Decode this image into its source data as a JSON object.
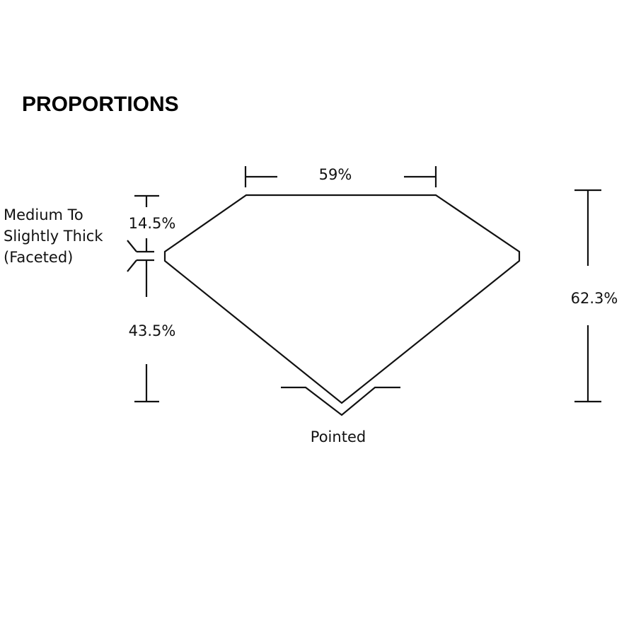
{
  "title": "PROPORTIONS",
  "labels": {
    "table": "59%",
    "crown": "14.5%",
    "pavilion": "43.5%",
    "depth": "62.3%",
    "culet": "Pointed",
    "girdle": [
      "Medium To",
      "Slightly Thick",
      "(Faceted)"
    ]
  }
}
